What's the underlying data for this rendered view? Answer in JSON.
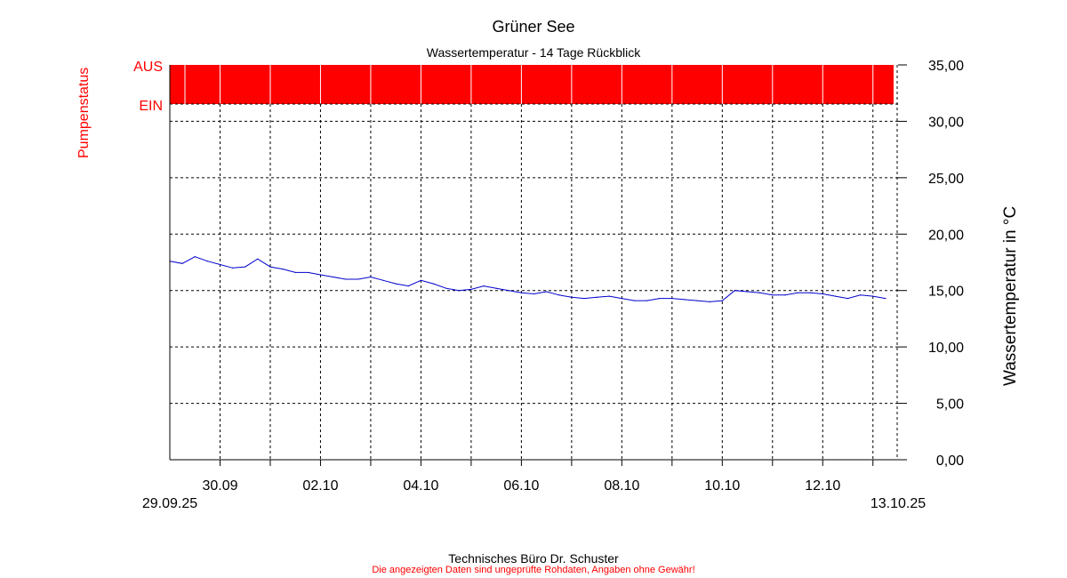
{
  "chart_data": {
    "type": "line",
    "title": "Grüner See",
    "subtitle": "Wassertemperatur - 14 Tage Rückblick",
    "ylabel": "Wassertemperatur in °C",
    "ylim": [
      0,
      35
    ],
    "yticks": [
      "0,00",
      "5,00",
      "10,00",
      "15,00",
      "20,00",
      "25,00",
      "30,00",
      "35,00"
    ],
    "xlim": [
      "2025-09-29T00:00",
      "2025-10-13T12:00"
    ],
    "xticks": [
      {
        "date": "2025-09-30T00:00",
        "label": "30.09"
      },
      {
        "date": "2025-10-02T00:00",
        "label": "02.10"
      },
      {
        "date": "2025-10-04T00:00",
        "label": "04.10"
      },
      {
        "date": "2025-10-06T00:00",
        "label": "06.10"
      },
      {
        "date": "2025-10-08T00:00",
        "label": "08.10"
      },
      {
        "date": "2025-10-10T00:00",
        "label": "10.10"
      },
      {
        "date": "2025-10-12T00:00",
        "label": "12.10"
      }
    ],
    "x_start_label": "29.09.25",
    "x_end_label": "13.10.25",
    "grid": true,
    "series": [
      {
        "color": "#0000cc",
        "x": [
          "2025-09-29T00:00",
          "2025-09-29T06:00",
          "2025-09-29T12:00",
          "2025-09-29T18:00",
          "2025-09-30T00:00",
          "2025-09-30T06:00",
          "2025-09-30T12:00",
          "2025-09-30T18:00",
          "2025-10-01T00:00",
          "2025-10-01T06:00",
          "2025-10-01T12:00",
          "2025-10-01T18:00",
          "2025-10-02T00:00",
          "2025-10-02T06:00",
          "2025-10-02T12:00",
          "2025-10-02T18:00",
          "2025-10-03T00:00",
          "2025-10-03T06:00",
          "2025-10-03T12:00",
          "2025-10-03T18:00",
          "2025-10-04T00:00",
          "2025-10-04T06:00",
          "2025-10-04T12:00",
          "2025-10-04T18:00",
          "2025-10-05T00:00",
          "2025-10-05T06:00",
          "2025-10-05T12:00",
          "2025-10-05T18:00",
          "2025-10-06T00:00",
          "2025-10-06T06:00",
          "2025-10-06T12:00",
          "2025-10-06T18:00",
          "2025-10-07T00:00",
          "2025-10-07T06:00",
          "2025-10-07T12:00",
          "2025-10-07T18:00",
          "2025-10-08T00:00",
          "2025-10-08T06:00",
          "2025-10-08T12:00",
          "2025-10-08T18:00",
          "2025-10-09T00:00",
          "2025-10-09T06:00",
          "2025-10-09T12:00",
          "2025-10-09T18:00",
          "2025-10-10T00:00",
          "2025-10-10T06:00",
          "2025-10-10T12:00",
          "2025-10-10T18:00",
          "2025-10-11T00:00",
          "2025-10-11T06:00",
          "2025-10-11T12:00",
          "2025-10-11T18:00",
          "2025-10-12T00:00",
          "2025-10-12T06:00",
          "2025-10-12T12:00",
          "2025-10-12T18:00",
          "2025-10-13T00:00",
          "2025-10-13T06:00"
        ],
        "y": [
          17.6,
          17.4,
          18.0,
          17.6,
          17.3,
          17.0,
          17.1,
          17.8,
          17.1,
          16.9,
          16.6,
          16.6,
          16.4,
          16.2,
          16.0,
          16.0,
          16.2,
          15.9,
          15.6,
          15.4,
          15.9,
          15.6,
          15.2,
          15.0,
          15.1,
          15.4,
          15.2,
          15.0,
          14.8,
          14.7,
          14.9,
          14.6,
          14.4,
          14.3,
          14.4,
          14.5,
          14.3,
          14.1,
          14.1,
          14.3,
          14.3,
          14.2,
          14.1,
          14.0,
          14.1,
          15.0,
          14.9,
          14.8,
          14.6,
          14.6,
          14.8,
          14.8,
          14.7,
          14.5,
          14.3,
          14.6,
          14.5,
          14.3
        ]
      }
    ],
    "pump_status": {
      "label": "Pumpenstatus",
      "levels": [
        "AUS",
        "EIN"
      ],
      "color": "#ff0000",
      "state": "AUS"
    }
  },
  "footer": {
    "company": "Technisches Büro Dr. Schuster",
    "disclaimer": "Die angezeigten Daten sind ungeprüfte Rohdaten, Angaben ohne Gewähr!"
  }
}
